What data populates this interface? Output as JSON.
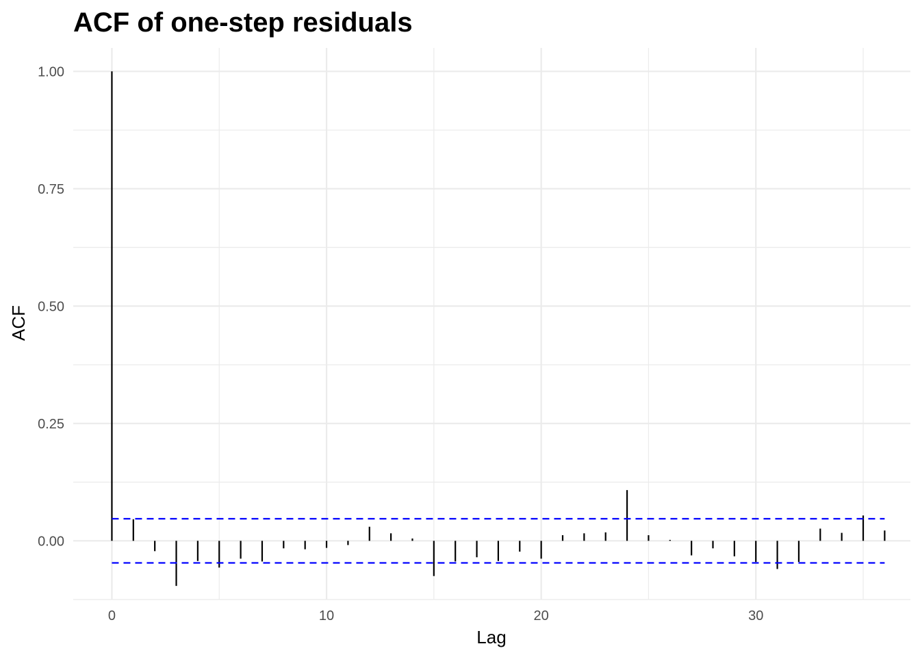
{
  "chart_data": {
    "type": "bar",
    "title": "ACF of one-step residuals",
    "xlabel": "Lag",
    "ylabel": "ACF",
    "x": [
      0,
      1,
      2,
      3,
      4,
      5,
      6,
      7,
      8,
      9,
      10,
      11,
      12,
      13,
      14,
      15,
      16,
      17,
      18,
      19,
      20,
      21,
      22,
      23,
      24,
      25,
      26,
      27,
      28,
      29,
      30,
      31,
      32,
      33,
      34,
      35,
      36
    ],
    "values": [
      1.0,
      0.046,
      -0.022,
      -0.096,
      -0.043,
      -0.057,
      -0.038,
      -0.044,
      -0.016,
      -0.018,
      -0.015,
      -0.009,
      0.03,
      0.016,
      0.005,
      -0.075,
      -0.044,
      -0.035,
      -0.043,
      -0.023,
      -0.038,
      0.012,
      0.016,
      0.018,
      0.108,
      0.012,
      0.002,
      -0.031,
      -0.016,
      -0.033,
      -0.045,
      -0.06,
      -0.045,
      0.026,
      0.017,
      0.054,
      0.022
    ],
    "confidence_band": [
      -0.047,
      0.047
    ],
    "xlim": [
      -1.8,
      37.2
    ],
    "ylim": [
      -0.125,
      1.05
    ],
    "x_ticks": [
      0,
      10,
      20,
      30
    ],
    "x_tick_labels": [
      "0",
      "10",
      "20",
      "30"
    ],
    "y_ticks": [
      0.0,
      0.25,
      0.5,
      0.75,
      1.0
    ],
    "y_tick_labels": [
      "0.00",
      "0.25",
      "0.50",
      "0.75",
      "1.00"
    ],
    "grid": true,
    "colors": {
      "bars": "#000000",
      "band": "#0000ff",
      "grid": "#ebebeb",
      "zero_line": "#ebebeb"
    }
  }
}
